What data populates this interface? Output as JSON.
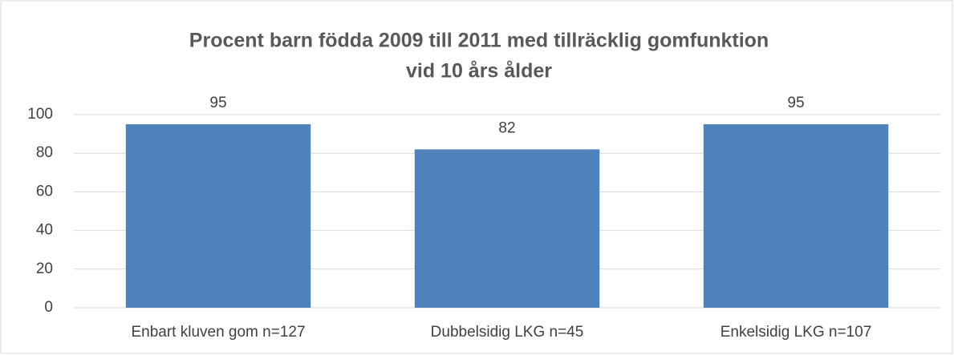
{
  "chart_data": {
    "type": "bar",
    "title": [
      "Procent barn födda 2009 till 2011 med tillräcklig gomfunktion",
      "vid 10 års ålder"
    ],
    "categories": [
      "Enbart kluven gom n=127",
      "Dubbelsidig LKG n=45",
      "Enkelsidig LKG n=107"
    ],
    "values": [
      95,
      82,
      95
    ],
    "color": "#4f81bd",
    "ylim": [
      0,
      100
    ],
    "yticks": [
      0,
      20,
      40,
      60,
      80,
      100
    ],
    "grid": true
  }
}
